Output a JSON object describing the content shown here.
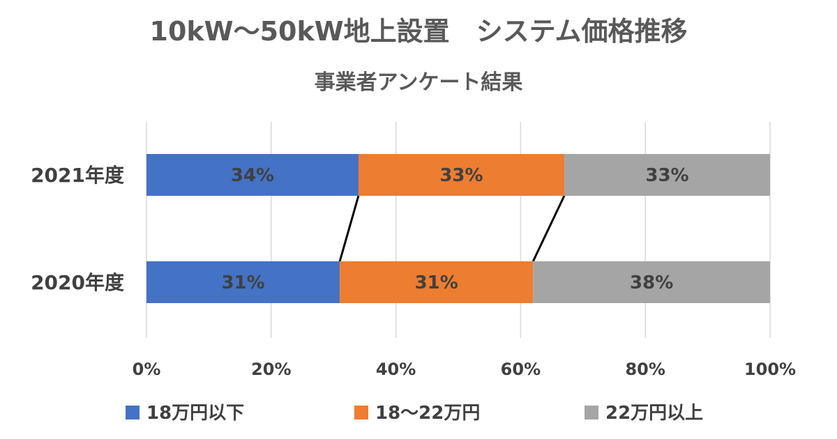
{
  "chart_data": {
    "type": "bar",
    "orientation": "horizontal",
    "stacked": "percent",
    "title": "10kW～50kW地上設置　システム価格推移",
    "subtitle": "事業者アンケート結果",
    "categories": [
      "2021年度",
      "2020年度"
    ],
    "series": [
      {
        "name": "18万円以下",
        "values": [
          34,
          31
        ],
        "labels": [
          "34%",
          "31%"
        ],
        "color": "#4472C4"
      },
      {
        "name": "18～22万円",
        "values": [
          33,
          31
        ],
        "labels": [
          "33%",
          "31%"
        ],
        "color": "#ED7D31"
      },
      {
        "name": "22万円以上",
        "values": [
          33,
          38
        ],
        "labels": [
          "33%",
          "38%"
        ],
        "color": "#A5A5A5"
      }
    ],
    "xlim": [
      0,
      100
    ],
    "xticks": [
      0,
      20,
      40,
      60,
      80,
      100
    ],
    "xtick_labels": [
      "0%",
      "20%",
      "40%",
      "60%",
      "80%",
      "100%"
    ],
    "grid": true,
    "series_lines": true,
    "legend_position": "bottom"
  }
}
